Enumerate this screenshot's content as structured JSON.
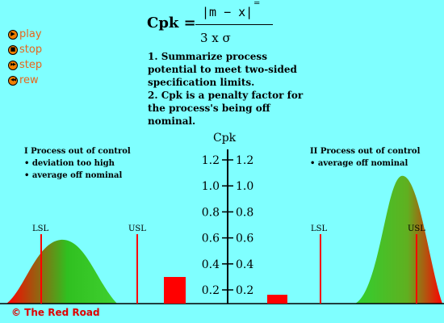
{
  "controls": [
    {
      "label": "play",
      "icon": "play-icon",
      "glyph": "▶"
    },
    {
      "label": "stop",
      "icon": "stop-icon",
      "glyph": "■"
    },
    {
      "label": "step",
      "icon": "step-icon",
      "glyph": "▶▶"
    },
    {
      "label": "rew",
      "icon": "rewind-icon",
      "glyph": "◀◀"
    }
  ],
  "formula": {
    "lhs": "Cpk =",
    "numerator": "|m  −  x|",
    "numerator_bar": "=",
    "denominator": "3 x  σ"
  },
  "notes": [
    "1. Summarize process potential to meet two-sided specification limits.",
    "2. Cpk is a penalty factor for the process's being off nominal."
  ],
  "panel_left": {
    "title": "I  Process out of control",
    "bullets": [
      "• deviation too high",
      "• average off nominal"
    ],
    "lsl": "LSL",
    "usl": "USL"
  },
  "panel_right": {
    "title": "II  Process out of control",
    "bullets": [
      "• average off nominal"
    ],
    "lsl": "LSL",
    "usl": "USL"
  },
  "axis": {
    "title": "Cpk",
    "ticks": [
      "1.2",
      "1.0",
      "0.8",
      "0.6",
      "0.4",
      "0.2"
    ],
    "tick_values": [
      1.2,
      1.0,
      0.8,
      0.6,
      0.4,
      0.2
    ]
  },
  "cpk_bars": {
    "left_value": 0.3,
    "right_value": 0.1
  },
  "colors": {
    "background": "#7FFFFF",
    "red": "#FF0000",
    "green": "#20D020",
    "orange": "#F08000"
  },
  "copyright": "© The Red Road"
}
